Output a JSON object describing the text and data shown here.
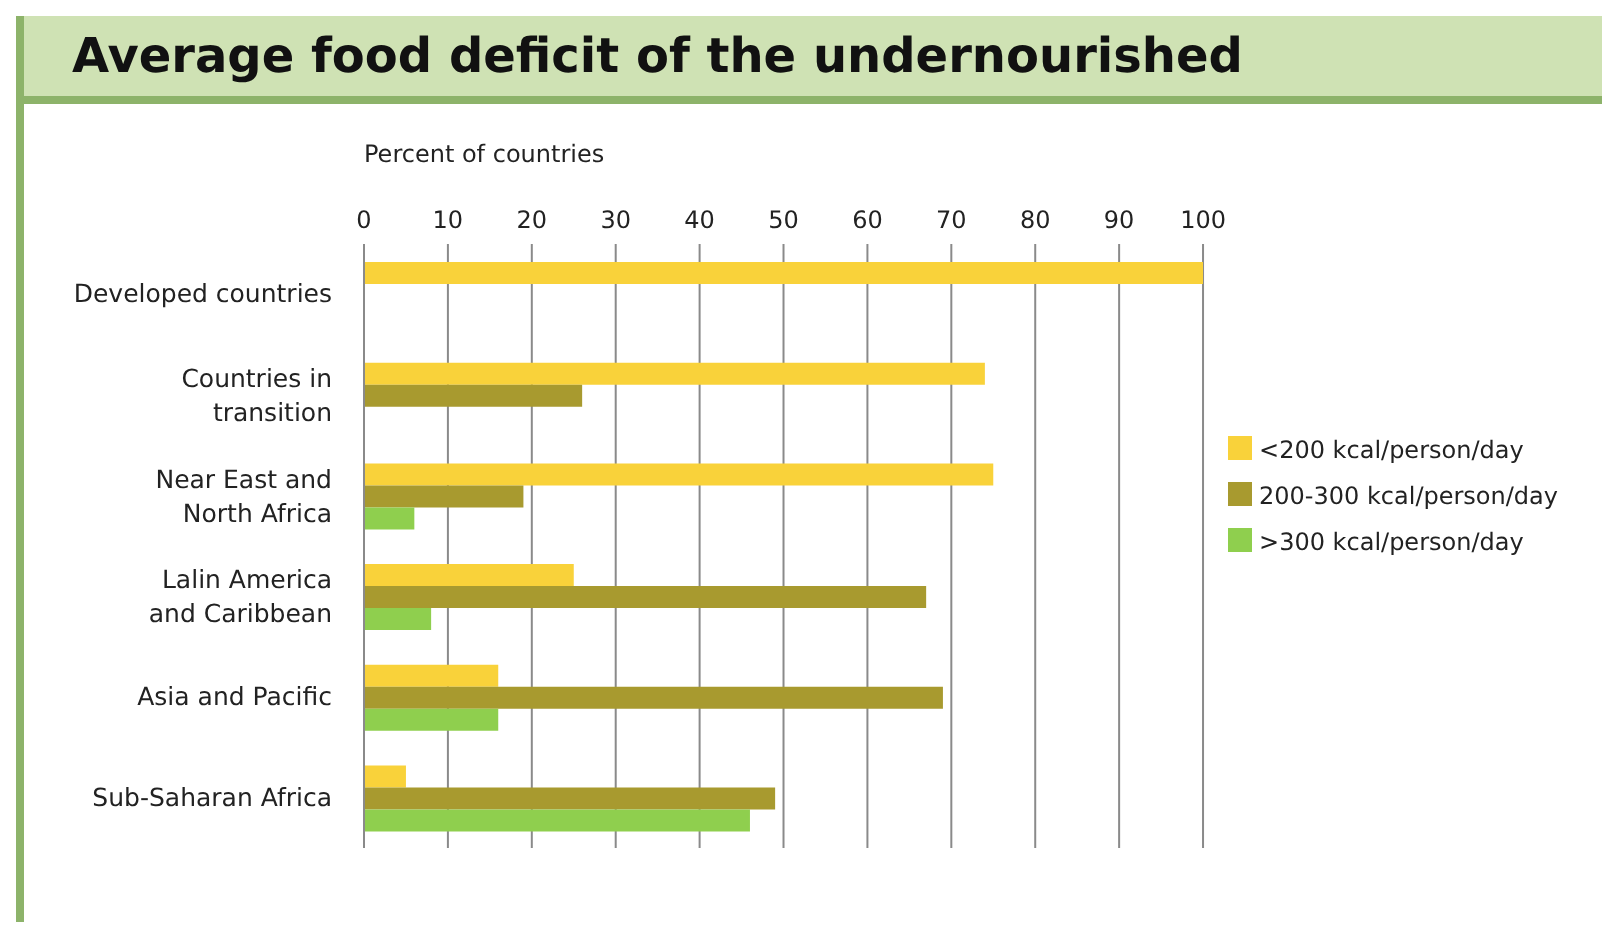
{
  "chart_data": {
    "type": "bar",
    "orientation": "horizontal",
    "title": "Average food deficit of the undernourished",
    "xlabel": "Percent of countries",
    "categories": [
      "Developed countries",
      "Countries in transition",
      "Near East and North Africa",
      "Lalin America and Caribbean",
      "Asia and Pacific",
      "Sub-Saharan Africa"
    ],
    "series": [
      {
        "name": "<200 kcal/person/day",
        "color": "#f9d23a",
        "values": [
          100,
          74,
          75,
          25,
          16,
          5
        ]
      },
      {
        "name": "200-300 kcal/person/day",
        "color": "#a89a2f",
        "values": [
          null,
          26,
          19,
          67,
          69,
          49
        ]
      },
      {
        "name": ">300 kcal/person/day",
        "color": "#8fcf4e",
        "values": [
          null,
          null,
          6,
          8,
          16,
          46
        ]
      }
    ],
    "xlim": [
      0,
      100
    ],
    "xticks": [
      0,
      10,
      20,
      30,
      40,
      50,
      60,
      70,
      80,
      90,
      100
    ],
    "grid": "x",
    "legend": "right"
  }
}
